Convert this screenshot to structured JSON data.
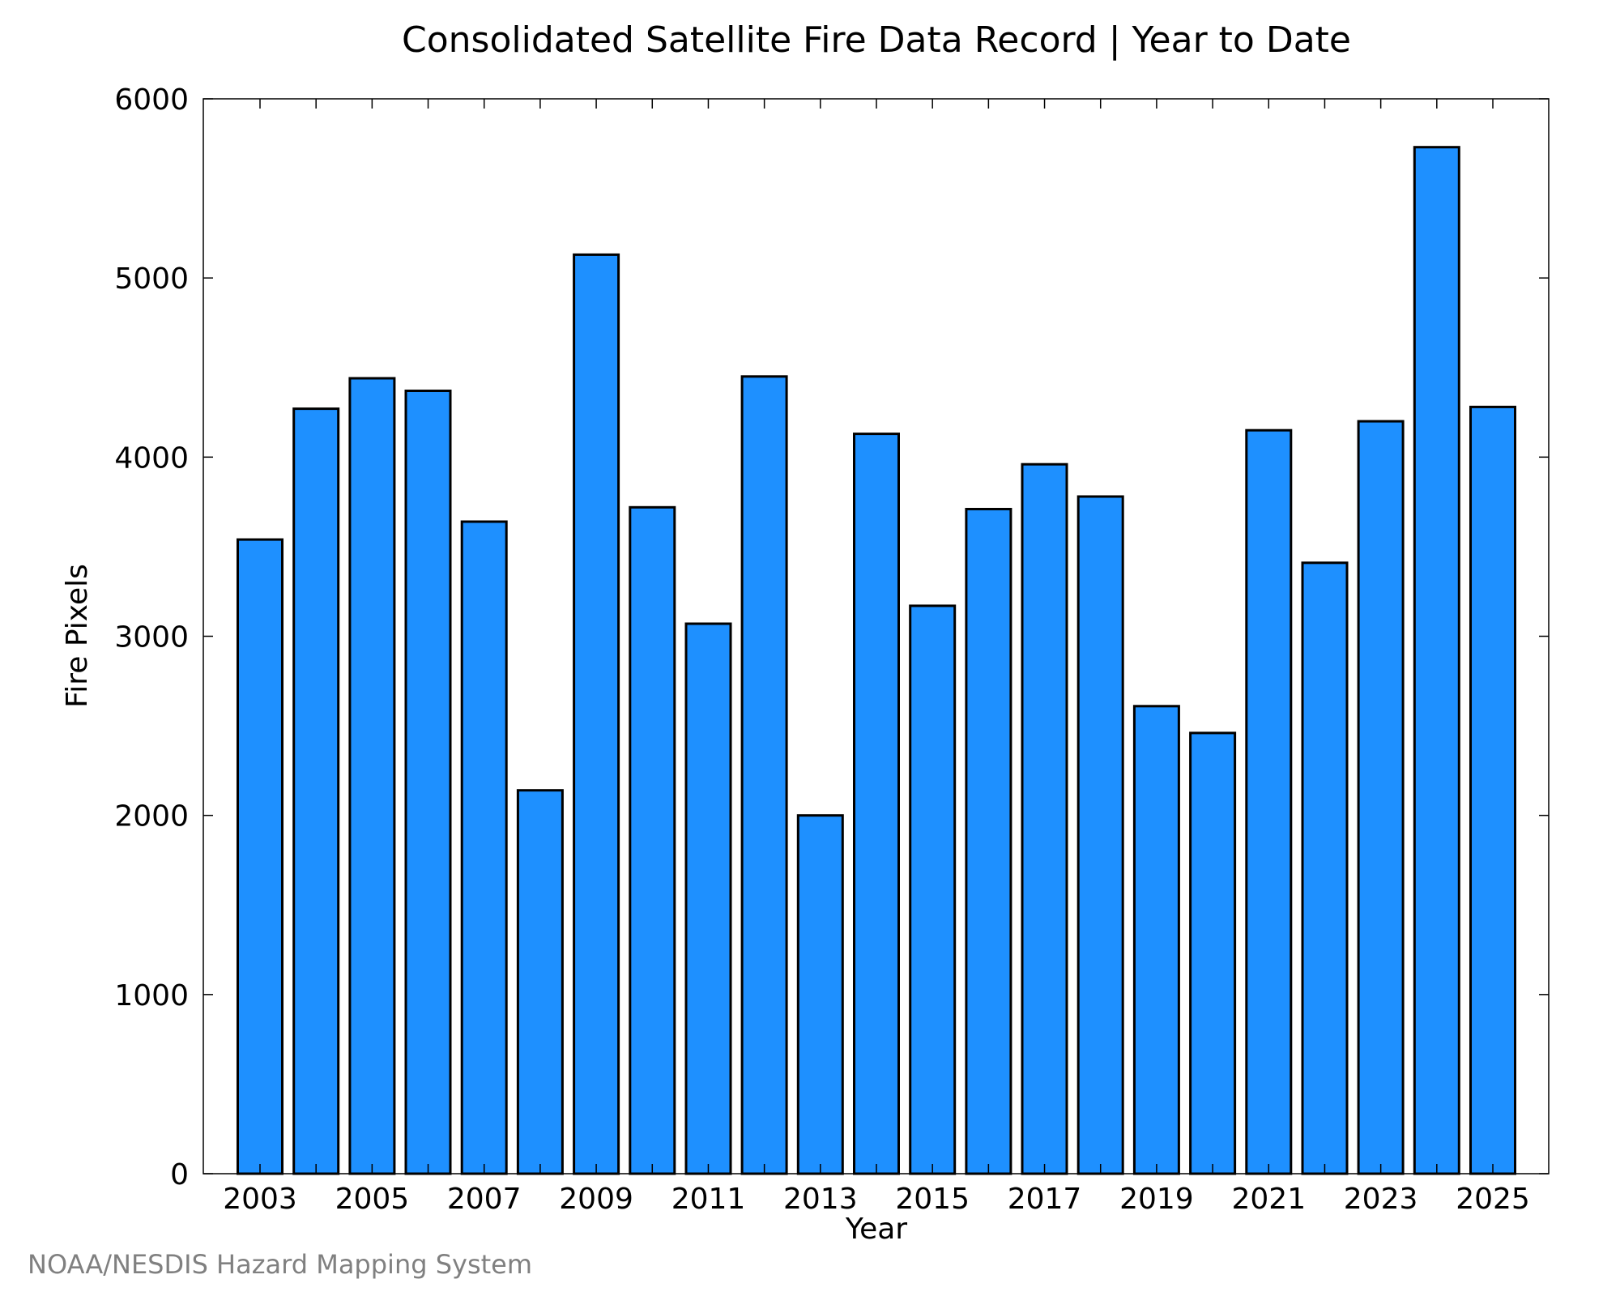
{
  "chart_data": {
    "type": "bar",
    "title": "Consolidated Satellite Fire Data Record | Year to Date",
    "xlabel": "Year",
    "ylabel": "Fire Pixels",
    "categories": [
      "2003",
      "2004",
      "2005",
      "2006",
      "2007",
      "2008",
      "2009",
      "2010",
      "2011",
      "2012",
      "2013",
      "2014",
      "2015",
      "2016",
      "2017",
      "2018",
      "2019",
      "2020",
      "2021",
      "2022",
      "2023",
      "2024",
      "2025"
    ],
    "values": [
      3540,
      4270,
      4440,
      4370,
      3640,
      2140,
      5130,
      3720,
      3070,
      4450,
      2000,
      4130,
      3170,
      3710,
      3960,
      3780,
      2610,
      2460,
      4150,
      3410,
      4200,
      5730,
      4280
    ],
    "x_tick_labels": [
      "2003",
      "2005",
      "2007",
      "2009",
      "2011",
      "2013",
      "2015",
      "2017",
      "2019",
      "2021",
      "2023",
      "2025"
    ],
    "y_tick_labels": [
      "0",
      "1000",
      "2000",
      "3000",
      "4000",
      "5000",
      "6000"
    ],
    "y_ticks": [
      0,
      1000,
      2000,
      3000,
      4000,
      5000,
      6000
    ],
    "ylim": [
      0,
      6000
    ],
    "grid": false,
    "bar_color": "#1e90ff",
    "bar_edge_color": "#000000"
  },
  "footer": {
    "credit": "NOAA/NESDIS Hazard Mapping System"
  }
}
